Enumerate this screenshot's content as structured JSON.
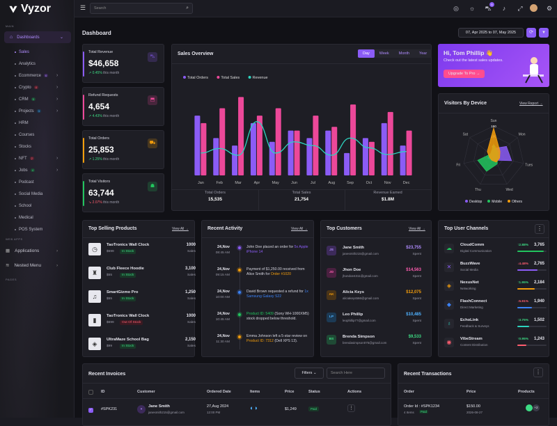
{
  "app": {
    "name": "Vyzor"
  },
  "sidebar": {
    "sections": {
      "main": "MAIN",
      "web_apps": "WEB APPS",
      "pages": "PAGES"
    },
    "dashboards_label": "Dashboards",
    "items": [
      {
        "label": "Sales",
        "active": true,
        "badge": "",
        "chev": false
      },
      {
        "label": "Analytics",
        "badge": "",
        "chev": false
      },
      {
        "label": "Ecommerce",
        "badge": "6",
        "badge_class": "b-pur",
        "chev": true
      },
      {
        "label": "Crypto",
        "badge": "4",
        "badge_class": "b-red",
        "chev": true
      },
      {
        "label": "CRM",
        "badge": "5",
        "badge_class": "b-grn",
        "chev": true
      },
      {
        "label": "Projects",
        "badge": "3",
        "badge_class": "b-blu",
        "chev": true
      },
      {
        "label": "HRM",
        "badge": "",
        "chev": false
      },
      {
        "label": "Courses",
        "badge": "",
        "chev": false
      },
      {
        "label": "Stocks",
        "badge": "",
        "chev": false
      },
      {
        "label": "NFT",
        "badge": "2",
        "badge_class": "b-red",
        "chev": true
      },
      {
        "label": "Jobs",
        "badge": "4",
        "badge_class": "b-grn",
        "chev": true
      },
      {
        "label": "Podcast",
        "badge": "",
        "chev": false
      },
      {
        "label": "Social Media",
        "badge": "",
        "chev": false
      },
      {
        "label": "School",
        "badge": "",
        "chev": false
      },
      {
        "label": "Medical",
        "badge": "",
        "chev": false
      },
      {
        "label": "POS System",
        "badge": "",
        "chev": false
      }
    ],
    "applications": "Applications",
    "nested_menu": "Nested Menu"
  },
  "topbar": {
    "search_placeholder": "Search",
    "notif_count": "5"
  },
  "page": {
    "title": "Dashboard",
    "date_range": "07, Apr 2025 to 07, May 2025"
  },
  "stats": [
    {
      "label": "Total Revenue",
      "value": "$46,658",
      "change": "0.45%",
      "suffix": "this month",
      "dir": "up",
      "color": "#8b5cf6",
      "icon": "cart-icon"
    },
    {
      "label": "Refund Requests",
      "value": "4,654",
      "change": "4.43%",
      "suffix": "this month",
      "dir": "up",
      "color": "#ec4899",
      "icon": "return-icon"
    },
    {
      "label": "Total Orders",
      "value": "25,853",
      "change": "1.25%",
      "suffix": "this month",
      "dir": "up",
      "color": "#f59e0b",
      "icon": "order-icon"
    },
    {
      "label": "Total Visitors",
      "value": "63,744",
      "change": "2.07%",
      "suffix": "this month",
      "dir": "down",
      "color": "#22c55e",
      "icon": "users-icon"
    }
  ],
  "sales_overview": {
    "title": "Sales Overview",
    "tabs": [
      "Day",
      "Week",
      "Month",
      "Year"
    ],
    "summary": [
      {
        "label": "Total Orders",
        "value": "15,535"
      },
      {
        "label": "Total Sales",
        "value": "21,754"
      },
      {
        "label": "Revenue Earned",
        "value": "$1.8M"
      }
    ]
  },
  "chart_data": [
    {
      "type": "bar",
      "title": "Sales Overview",
      "categories": [
        "Jan",
        "Feb",
        "Mar",
        "Apr",
        "May",
        "Jun",
        "Jul",
        "Aug",
        "Sep",
        "Oct",
        "Nov",
        "Dec"
      ],
      "series": [
        {
          "name": "Total Orders",
          "type": "bar",
          "color": "#8b5cf6",
          "values": [
            80,
            50,
            40,
            70,
            45,
            60,
            50,
            60,
            30,
            50,
            70,
            40
          ]
        },
        {
          "name": "Total Sales",
          "type": "bar",
          "color": "#ec4899",
          "values": [
            70,
            90,
            105,
            80,
            90,
            60,
            80,
            65,
            95,
            45,
            85,
            60
          ]
        },
        {
          "name": "Revenue",
          "type": "line",
          "color": "#2dd4bf",
          "values": [
            30,
            36,
            27,
            72,
            30,
            45,
            40,
            27,
            50,
            37,
            28,
            32
          ]
        }
      ],
      "legend": "top-left"
    },
    {
      "type": "radar",
      "title": "Visitors By Device",
      "categories": [
        "Sun",
        "Mon",
        "Tues",
        "Wed",
        "Thu",
        "Fri",
        "Sat"
      ],
      "ticks": [
        "150",
        "100",
        "50",
        "0"
      ],
      "series": [
        {
          "name": "Desktop",
          "color": "#8b5cf6",
          "values": [
            40,
            80,
            90,
            20,
            20,
            30,
            20
          ]
        },
        {
          "name": "Mobile",
          "color": "#22c55e",
          "values": [
            60,
            30,
            20,
            40,
            80,
            80,
            20
          ]
        },
        {
          "name": "Others",
          "color": "#f59e0b",
          "values": [
            140,
            40,
            30,
            30,
            20,
            20,
            40
          ]
        }
      ],
      "legend": "bottom"
    }
  ],
  "promo": {
    "title": "Hi, Tom Phillip 👋",
    "text": "Check out the latest sales updates.",
    "button": "Upgrade To Pro →"
  },
  "visitors": {
    "title": "Visitors By Device",
    "view": "View Report →",
    "legend": [
      "Desktop",
      "Mobile",
      "Others"
    ]
  },
  "top_products": {
    "title": "Top Selling Products",
    "view": "View All →",
    "unit": "Sales",
    "items": [
      {
        "name": "TaoTronics Wall Clock",
        "price": "$599",
        "status": "In Stock",
        "qty": "1000",
        "icon": "◷"
      },
      {
        "name": "Club Fleece Hoodie",
        "price": "$55",
        "status": "In Stock",
        "qty": "3,100",
        "icon": "♜"
      },
      {
        "name": "SmartGizmo Pro",
        "price": "$55",
        "status": "In Stock",
        "qty": "1,250",
        "icon": "♫"
      },
      {
        "name": "TaoTronics Wall Clock",
        "price": "$699",
        "status": "Out Of Stock",
        "qty": "1000",
        "icon": "▮"
      },
      {
        "name": "UltraMaze School Bag",
        "price": "$99",
        "status": "In Stock",
        "qty": "2,150",
        "icon": "◈"
      }
    ]
  },
  "recent_activity": {
    "title": "Recent Activity",
    "view": "View All →",
    "items": [
      {
        "date": "24,Nov",
        "time": "08:45 AM",
        "color": "#8b5cf6",
        "parts": [
          "John Doe placed an order for ",
          "5x Apple iPhone 14",
          ""
        ]
      },
      {
        "date": "24,Nov",
        "time": "09:15 AM",
        "color": "#f59e0b",
        "parts": [
          "Payment of $1,250.00 received from Alice Smith for ",
          "Order #1020",
          ""
        ]
      },
      {
        "date": "24,Nov",
        "time": "10:00 AM",
        "color": "#3b82f6",
        "parts": [
          "David Brown requested a refund for ",
          "1x Samsung Galaxy S22",
          ""
        ]
      },
      {
        "date": "24,Nov",
        "time": "10:45 AM",
        "color": "#22c55e",
        "parts": [
          "",
          "Product ID: 5409",
          " (Sony WH-1000XM5) stock dropped below threshold."
        ]
      },
      {
        "date": "24,Nov",
        "time": "11:30 AM",
        "color": "#f59e0b",
        "parts": [
          "Emma Johnson left a 5-star review on ",
          "Product ID: 7312",
          " (Dell XPS 13)."
        ]
      }
    ]
  },
  "top_customers": {
    "title": "Top Customers",
    "view": "View All →",
    "unit": "Spent",
    "items": [
      {
        "initials": "JS",
        "name": "Jane Smith",
        "email": "janesmith215@gmail.com",
        "amount": "$23,755",
        "color": "#b08cff",
        "bg": "#3c2a5a"
      },
      {
        "initials": "JD",
        "name": "Jhon Doe",
        "email": "jhondoe4311@gmail.com",
        "amount": "$14,563",
        "color": "#ff5db1",
        "bg": "#4a2040"
      },
      {
        "initials": "AK",
        "name": "Alicia Keys",
        "email": "aliciakeys566@gmail.com",
        "amount": "$12,075",
        "color": "#f59e0b",
        "bg": "#4a3418"
      },
      {
        "initials": "LP",
        "name": "Leo Phillip",
        "email": "leophillip77@gmail.com",
        "amount": "$10,485",
        "color": "#4fb2ff",
        "bg": "#1c3a55"
      },
      {
        "initials": "BS",
        "name": "Brenda Simpson",
        "email": "brendasimpson075@gmail.com",
        "amount": "$9,533",
        "color": "#3ddc84",
        "bg": "#1f4a35"
      }
    ]
  },
  "channels": {
    "title": "Top User Channels",
    "items": [
      {
        "name": "CloudComm",
        "sub": "Digital Communication",
        "pct": "2.88%",
        "dir": "up",
        "count": "3,765",
        "color": "#22c55e",
        "fill": 0.9
      },
      {
        "name": "BuzzWave",
        "sub": "Social Media",
        "pct": "4.48%",
        "dir": "down",
        "count": "2,765",
        "color": "#8b5cf6",
        "fill": 0.7
      },
      {
        "name": "NexusNet",
        "sub": "Networking",
        "pct": "1.95%",
        "dir": "up",
        "count": "2,184",
        "color": "#f59e0b",
        "fill": 0.6
      },
      {
        "name": "FlashConnect",
        "sub": "Direct Marketing",
        "pct": "5.91%",
        "dir": "down",
        "count": "1,940",
        "color": "#3b82f6",
        "fill": 0.5
      },
      {
        "name": "EchoLink",
        "sub": "Feedback & Surveys",
        "pct": "3.75%",
        "dir": "up",
        "count": "1,502",
        "color": "#2dd4bf",
        "fill": 0.4
      },
      {
        "name": "VibeStream",
        "sub": "Content Distribution",
        "pct": "0.95%",
        "dir": "up",
        "count": "1,243",
        "color": "#ff5d6f",
        "fill": 0.3
      }
    ]
  },
  "invoices": {
    "title": "Recent Invoices",
    "filter": "Filters",
    "search_placeholder": "Search Here",
    "columns": [
      "ID",
      "Customer",
      "Ordered Date",
      "Items",
      "Price",
      "Status",
      "Actions"
    ],
    "rows": [
      {
        "id": "#SPK231",
        "name": "Jane Smith",
        "email": "janesmith215@gmail.com",
        "date": "27,Aug 2024",
        "time": "12:00 PM",
        "price": "$1,249",
        "status": "Paid"
      }
    ]
  },
  "transactions": {
    "title": "Recent Transactions",
    "columns": [
      "Order",
      "Price",
      "Products"
    ],
    "rows": [
      {
        "order": "Order Id : #SPK1234",
        "items": "4 Items",
        "status": "Paid",
        "price": "$150.00",
        "date": "2026-08-27",
        "more": "+2"
      }
    ]
  }
}
